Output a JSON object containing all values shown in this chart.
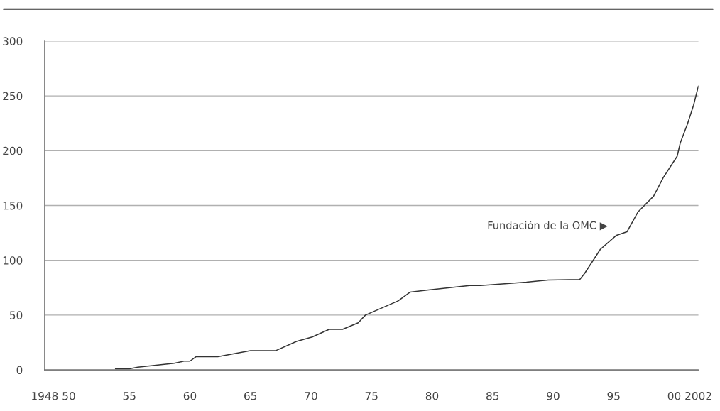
{
  "chart_data": {
    "type": "line",
    "x": [
      1953.85,
      1955.0,
      1955.7,
      1958.7,
      1959.5,
      1960.0,
      1960.5,
      1962.3,
      1965.0,
      1967.1,
      1968.8,
      1970.1,
      1971.5,
      1972.6,
      1973.9,
      1974.5,
      1977.2,
      1978.2,
      1979.7,
      1983.1,
      1984.0,
      1987.8,
      1989.6,
      1992.2,
      1992.6,
      1993.9,
      1995.2,
      1996.1,
      1997.0,
      1998.3,
      1999.1,
      2000.25,
      2000.5,
      2001.1,
      2001.6,
      2002.0
    ],
    "series": [
      {
        "color": "#333333",
        "values": [
          1,
          1,
          2.5,
          6,
          8,
          8,
          12,
          12,
          17.6,
          17.6,
          26,
          30,
          37,
          37,
          43,
          50,
          63,
          71,
          73,
          77,
          77,
          80,
          82,
          82.5,
          88,
          110,
          122.6,
          126,
          144,
          158.5,
          175.5,
          195,
          207,
          224.5,
          241.5,
          259
        ]
      }
    ],
    "xlim": [
      1948,
      2002
    ],
    "xticks": [
      {
        "value": 1948,
        "label": "1948"
      },
      {
        "value": 1950,
        "label": "50"
      },
      {
        "value": 1955,
        "label": "55"
      },
      {
        "value": 1960,
        "label": "60"
      },
      {
        "value": 1965,
        "label": "65"
      },
      {
        "value": 1970,
        "label": "70"
      },
      {
        "value": 1975,
        "label": "75"
      },
      {
        "value": 1980,
        "label": "80"
      },
      {
        "value": 1985,
        "label": "85"
      },
      {
        "value": 1990,
        "label": "90"
      },
      {
        "value": 1995,
        "label": "95"
      },
      {
        "value": 2000,
        "label": "00"
      },
      {
        "value": 2002,
        "label": "2002"
      }
    ],
    "ylim": [
      0,
      300
    ],
    "yticks": [
      0,
      50,
      100,
      150,
      200,
      250,
      300
    ],
    "grid": "y",
    "marker": "none",
    "line_style": "solid",
    "annotations": [
      {
        "text": "Fundación de la OMC ▶",
        "x": 1995,
        "y": 123
      }
    ]
  }
}
